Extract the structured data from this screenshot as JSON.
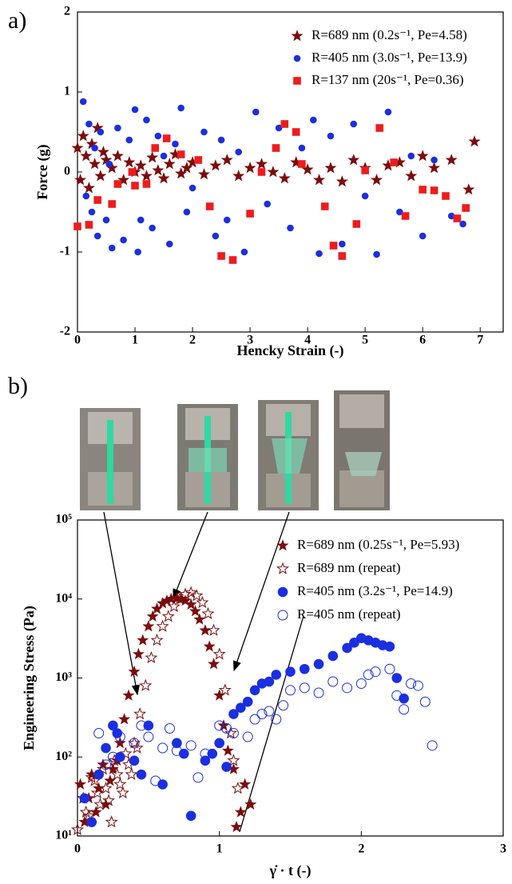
{
  "chart_data": [
    {
      "type": "scatter",
      "label": "a)",
      "xlabel": "Hencky Strain (-)",
      "ylabel": "Force (g)",
      "xlim": [
        0,
        7.4
      ],
      "ylim": [
        -2,
        2
      ],
      "xticks": [
        0,
        1,
        2,
        3,
        4,
        5,
        6,
        7
      ],
      "yticks": [
        -2,
        -1,
        0,
        1,
        2
      ],
      "log_y": false,
      "legend": "upper right",
      "series": [
        {
          "name": "R=689 nm (0.2s⁻¹, Pe=4.58)",
          "color": "#7b0c0c",
          "marker": "star",
          "filled": true,
          "x": [
            0,
            0.05,
            0.1,
            0.15,
            0.2,
            0.25,
            0.3,
            0.35,
            0.4,
            0.45,
            0.5,
            0.6,
            0.7,
            0.8,
            0.9,
            1.0,
            1.1,
            1.2,
            1.3,
            1.4,
            1.5,
            1.6,
            1.7,
            1.8,
            1.9,
            2.0,
            2.2,
            2.4,
            2.6,
            2.8,
            3.0,
            3.2,
            3.4,
            3.6,
            3.8,
            4.0,
            4.2,
            4.4,
            4.6,
            4.8,
            5.0,
            5.2,
            5.4,
            5.6,
            5.8,
            6.0,
            6.2,
            6.5,
            6.8,
            6.9
          ],
          "values": [
            0.3,
            -0.1,
            0.45,
            0.2,
            -0.2,
            0.35,
            0.1,
            0.55,
            -0.05,
            0.25,
            0.15,
            0.05,
            0.2,
            -0.1,
            0.12,
            0.0,
            0.08,
            -0.05,
            0.18,
            0.02,
            -0.08,
            0.1,
            0.22,
            -0.02,
            0.05,
            0.12,
            -0.03,
            0.08,
            0.15,
            -0.05,
            0.05,
            0.1,
            0.0,
            -0.08,
            0.12,
            0.03,
            -0.1,
            0.05,
            -0.12,
            0.15,
            0.05,
            -0.1,
            0.08,
            0.12,
            -0.05,
            0.2,
            0.05,
            0.15,
            -0.22,
            0.38
          ]
        },
        {
          "name": "R=405 nm (3.0s⁻¹, Pe=13.9)",
          "color": "#1a2fe0",
          "marker": "circle",
          "filled": true,
          "x": [
            0.1,
            0.15,
            0.2,
            0.25,
            0.3,
            0.35,
            0.4,
            0.5,
            0.55,
            0.6,
            0.7,
            0.8,
            0.9,
            1.0,
            1.05,
            1.1,
            1.2,
            1.3,
            1.4,
            1.5,
            1.6,
            1.7,
            1.8,
            1.9,
            2.0,
            2.2,
            2.4,
            2.5,
            2.6,
            2.8,
            2.9,
            3.1,
            3.3,
            3.5,
            3.7,
            3.9,
            4.1,
            4.2,
            4.4,
            4.6,
            4.8,
            5.0,
            5.2,
            5.4,
            5.6,
            5.8,
            6.0,
            6.2,
            6.5,
            6.7
          ],
          "values": [
            0.88,
            -0.3,
            0.6,
            -0.5,
            0.3,
            -0.8,
            0.5,
            -0.6,
            0.1,
            -0.95,
            0.55,
            -0.85,
            0.4,
            0.78,
            -1.0,
            -0.6,
            0.65,
            -0.7,
            0.45,
            0.2,
            -0.9,
            0.35,
            0.8,
            -0.5,
            -0.2,
            0.5,
            -0.8,
            0.4,
            -0.6,
            0.25,
            -1.0,
            0.75,
            -0.4,
            0.55,
            -0.7,
            0.3,
            0.65,
            -1.02,
            0.45,
            -0.9,
            0.6,
            -0.3,
            -1.03,
            0.75,
            -0.5,
            0.2,
            -0.8,
            0.15,
            -0.55,
            -0.65
          ]
        },
        {
          "name": "R=137 nm (20s⁻¹, Pe=0.36)",
          "color": "#ee1c1c",
          "marker": "square",
          "filled": true,
          "x": [
            0,
            0.2,
            0.35,
            0.6,
            0.7,
            0.95,
            1.0,
            1.2,
            1.35,
            1.55,
            1.8,
            2.1,
            2.3,
            2.5,
            2.7,
            3.0,
            3.2,
            3.45,
            3.6,
            3.8,
            3.9,
            4.3,
            4.45,
            4.6,
            4.85,
            5.0,
            5.25,
            5.5,
            5.7,
            6.0,
            6.2,
            6.4,
            6.6,
            6.75
          ],
          "values": [
            -0.68,
            -0.66,
            -0.35,
            -0.4,
            -0.15,
            0.0,
            -0.17,
            -0.15,
            0.3,
            0.42,
            0.22,
            0.15,
            -0.43,
            -1.05,
            -1.1,
            -0.52,
            0.0,
            0.3,
            0.6,
            0.5,
            0.1,
            -0.43,
            -0.92,
            -1.05,
            -0.65,
            0.02,
            0.55,
            0.12,
            -0.55,
            -0.22,
            -0.23,
            -0.3,
            -0.58,
            -0.45
          ]
        }
      ]
    },
    {
      "type": "scatter",
      "label": "b)",
      "xlabel": "γ̇ · t (-)",
      "ylabel": "Engineering Stress (Pa)",
      "xlim": [
        0,
        3
      ],
      "ylim": [
        10,
        100000
      ],
      "xticks": [
        0,
        1,
        2,
        3
      ],
      "yticks": [
        {
          "value": 10,
          "label": "10¹"
        },
        {
          "value": 100,
          "label": "10²"
        },
        {
          "value": 1000,
          "label": "10³"
        },
        {
          "value": 10000,
          "label": "10⁴"
        },
        {
          "value": 100000,
          "label": "10⁵"
        }
      ],
      "log_y": true,
      "legend": "upper right",
      "series": [
        {
          "name": "R=689 nm (0.25s⁻¹, Pe=5.93)",
          "color": "#7b0c0c",
          "marker": "star",
          "filled": true,
          "x": [
            0.02,
            0.05,
            0.08,
            0.1,
            0.13,
            0.15,
            0.18,
            0.2,
            0.23,
            0.25,
            0.28,
            0.3,
            0.33,
            0.36,
            0.4,
            0.43,
            0.46,
            0.5,
            0.53,
            0.56,
            0.6,
            0.63,
            0.66,
            0.7,
            0.73,
            0.76,
            0.8,
            0.83,
            0.86,
            0.9,
            0.93,
            0.96,
            1.0,
            1.03,
            1.06,
            1.1,
            1.12,
            1.15,
            1.18,
            1.22
          ],
          "values": [
            45,
            15,
            30,
            60,
            20,
            40,
            80,
            25,
            50,
            70,
            90,
            150,
            300,
            600,
            1200,
            2000,
            3000,
            4500,
            6000,
            7500,
            8800,
            9500,
            10000,
            10200,
            10000,
            9500,
            8500,
            7000,
            5500,
            4000,
            2500,
            1500,
            600,
            250,
            120,
            70,
            13,
            20,
            45,
            25
          ]
        },
        {
          "name": "R=689 nm (repeat)",
          "color": "#7b0c0c",
          "marker": "star",
          "filled": false,
          "x": [
            0.0,
            0.04,
            0.08,
            0.12,
            0.16,
            0.2,
            0.24,
            0.28,
            0.32,
            0.36,
            0.4,
            0.44,
            0.48,
            0.52,
            0.56,
            0.6,
            0.64,
            0.68,
            0.72,
            0.76,
            0.8,
            0.84,
            0.88,
            0.92,
            0.96,
            1.0,
            1.04,
            1.08,
            1.1,
            1.13,
            0.06,
            0.1,
            0.14,
            0.18,
            0.22,
            0.26,
            0.3,
            0.34,
            0.38,
            0.42
          ],
          "values": [
            12,
            30,
            18,
            50,
            25,
            40,
            15,
            60,
            35,
            80,
            150,
            350,
            800,
            1800,
            3000,
            4500,
            6000,
            8000,
            10000,
            11500,
            12000,
            11000,
            9000,
            6500,
            4000,
            2000,
            700,
            200,
            90,
            40,
            20,
            55,
            35,
            70,
            28,
            90,
            45,
            110,
            60,
            130
          ]
        },
        {
          "name": "R=405 nm (3.2s⁻¹, Pe=14.9)",
          "color": "#1a2fe0",
          "marker": "circle",
          "filled": true,
          "x": [
            0.05,
            0.1,
            0.15,
            0.2,
            0.25,
            0.28,
            0.3,
            0.4,
            0.45,
            0.5,
            0.6,
            0.7,
            0.75,
            0.8,
            0.9,
            0.95,
            1.0,
            1.05,
            1.1,
            1.15,
            1.2,
            1.25,
            1.3,
            1.35,
            1.4,
            1.5,
            1.6,
            1.7,
            1.8,
            1.9,
            1.95,
            2.0,
            2.05,
            2.1,
            2.15,
            2.2,
            2.25,
            2.3
          ],
          "values": [
            30,
            15,
            60,
            130,
            250,
            200,
            100,
            90,
            60,
            250,
            45,
            150,
            110,
            18,
            90,
            110,
            150,
            75,
            350,
            420,
            500,
            700,
            850,
            900,
            1100,
            1200,
            1300,
            1500,
            1900,
            2400,
            2800,
            3200,
            3000,
            2800,
            2600,
            2500,
            1000,
            550
          ]
        },
        {
          "name": "R=405 nm (repeat)",
          "color": "#1a2fe0",
          "marker": "circle",
          "filled": false,
          "x": [
            0.15,
            0.2,
            0.25,
            0.3,
            0.4,
            0.45,
            0.5,
            0.55,
            0.6,
            0.65,
            0.7,
            0.8,
            0.85,
            0.9,
            1.0,
            1.05,
            1.1,
            1.2,
            1.25,
            1.3,
            1.35,
            1.4,
            1.45,
            1.5,
            1.6,
            1.7,
            1.8,
            1.9,
            2.0,
            2.05,
            2.1,
            2.2,
            2.25,
            2.3,
            2.35,
            2.4,
            2.45,
            2.5
          ],
          "values": [
            200,
            80,
            100,
            180,
            150,
            250,
            180,
            50,
            130,
            230,
            120,
            140,
            55,
            110,
            250,
            230,
            200,
            180,
            300,
            350,
            380,
            300,
            450,
            700,
            750,
            650,
            900,
            750,
            850,
            1100,
            1200,
            1300,
            600,
            400,
            850,
            800,
            500,
            140
          ]
        }
      ]
    }
  ]
}
